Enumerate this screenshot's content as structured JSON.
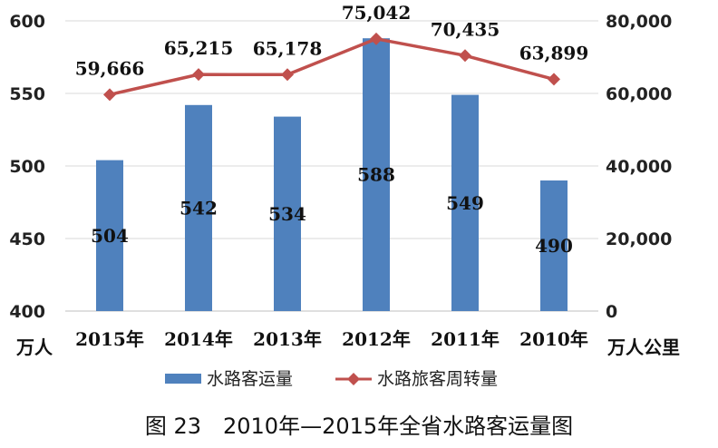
{
  "chart_data": {
    "type": "bar",
    "categories": [
      "2015年",
      "2014年",
      "2013年",
      "2012年",
      "2011年",
      "2010年"
    ],
    "series": [
      {
        "name": "水路客运量",
        "type": "bar",
        "axis": "left",
        "color": "#4f81bd",
        "values": [
          504,
          542,
          534,
          588,
          549,
          490
        ]
      },
      {
        "name": "水路旅客周转量",
        "type": "line",
        "axis": "right",
        "color": "#c0504d",
        "values": [
          59666,
          65215,
          65178,
          75042,
          70435,
          63899
        ]
      }
    ],
    "bar_labels": [
      "504",
      "542",
      "534",
      "588",
      "549",
      "490"
    ],
    "line_labels": [
      "59,666",
      "65,215",
      "65,178",
      "75,042",
      "70,435",
      "63,899"
    ],
    "y_left": {
      "range": [
        400,
        600
      ],
      "ticks": [
        "400",
        "450",
        "500",
        "550",
        "600"
      ],
      "unit": "万人"
    },
    "y_right": {
      "range": [
        0,
        80000
      ],
      "ticks": [
        "0",
        "20,000",
        "40,000",
        "60,000",
        "80,000"
      ],
      "unit": "万人公里"
    },
    "grid": true,
    "legend_position": "bottom",
    "caption": "图 23　2010年—2015年全省水路客运量图"
  }
}
